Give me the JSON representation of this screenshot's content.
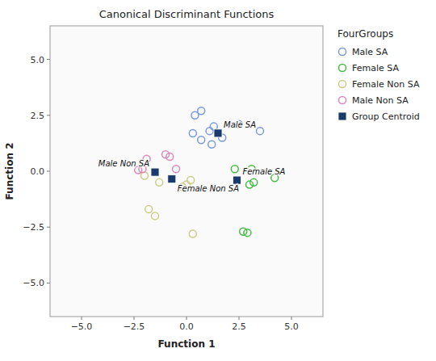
{
  "chart_data": {
    "type": "scatter",
    "title": "Canonical Discriminant Functions",
    "x_label": "Function 1",
    "y_label": "Function 2",
    "xlim": [
      -6.5,
      6.5
    ],
    "ylim": [
      -6.5,
      6.5
    ],
    "xticks": [
      {
        "value": -5.0,
        "label": "−5.0"
      },
      {
        "value": -2.5,
        "label": "−2.5"
      },
      {
        "value": 0.0,
        "label": "0.0"
      },
      {
        "value": 2.5,
        "label": "2.5"
      },
      {
        "value": 5.0,
        "label": "5.0"
      }
    ],
    "yticks": [
      {
        "value": -5.0,
        "label": "−5.0"
      },
      {
        "value": -2.5,
        "label": "−2.5"
      },
      {
        "value": 0.0,
        "label": "0.0"
      },
      {
        "value": 2.5,
        "label": "2.5"
      },
      {
        "value": 5.0,
        "label": "5.0"
      }
    ],
    "grid": false,
    "legend": "right",
    "legend_title": "FourGroups",
    "series": [
      {
        "name": "Male SA",
        "color": "#7799dd",
        "marker": "circle",
        "x": [
          0.7,
          0.4,
          0.3,
          1.1,
          1.3,
          2.5,
          0.7,
          1.7,
          3.5,
          1.2
        ],
        "values": [
          2.7,
          2.5,
          1.7,
          1.8,
          2.0,
          2.1,
          1.4,
          1.5,
          1.8,
          1.2
        ]
      },
      {
        "name": "Female SA",
        "color": "#44bb44",
        "marker": "circle",
        "x": [
          2.3,
          3.1,
          4.2,
          3.2,
          3.0,
          2.7,
          2.9
        ],
        "values": [
          0.1,
          0.1,
          -0.3,
          -0.5,
          -0.6,
          -2.7,
          -2.75
        ]
      },
      {
        "name": "Female Non SA",
        "color": "#cccc88",
        "marker": "circle",
        "x": [
          -2.0,
          -1.3,
          0.2,
          0.0,
          -0.2,
          -1.8,
          -1.5,
          0.3
        ],
        "values": [
          -0.2,
          -0.5,
          -0.4,
          -0.6,
          -0.7,
          -1.7,
          -2.0,
          -2.8
        ]
      },
      {
        "name": "Male Non SA",
        "color": "#dd88bb",
        "marker": "circle",
        "x": [
          -1.9,
          -2.1,
          -2.3,
          -1.0,
          -0.8,
          -0.5
        ],
        "values": [
          0.55,
          0.1,
          0.05,
          0.75,
          0.65,
          0.1
        ]
      },
      {
        "name": "Group Centroid",
        "color": "#1a3a6b",
        "marker": "square",
        "x": [
          1.5,
          2.4,
          -0.7,
          -1.5
        ],
        "values": [
          1.7,
          -0.4,
          -0.35,
          -0.04
        ]
      }
    ],
    "annotations": [
      {
        "text": "Male SA",
        "x": 1.5,
        "y": 1.7
      },
      {
        "text": "Female SA",
        "x": 2.4,
        "y": -0.4
      },
      {
        "text": "Female Non SA",
        "x": -0.7,
        "y": -0.35
      },
      {
        "text": "Male Non SA",
        "x": -1.5,
        "y": -0.04
      }
    ]
  }
}
